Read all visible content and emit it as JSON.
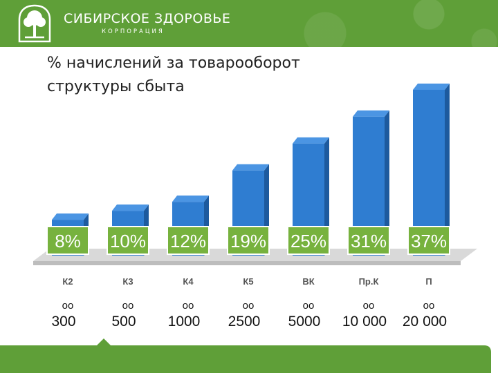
{
  "header": {
    "brand_name": "СИБИРСКОЕ ЗДОРОВЬЕ",
    "brand_subtitle": "КОРПОРАЦИЯ",
    "logo_icon": "tree-logo-icon",
    "color": "#5f9f38"
  },
  "title": {
    "line1": "% начислений за товарооборот",
    "line2": "структуры сбыта"
  },
  "chart_data": {
    "type": "bar",
    "categories": [
      "К2",
      "К3",
      "К4",
      "К5",
      "ВК",
      "Пр.К",
      "П"
    ],
    "values": [
      8,
      10,
      12,
      19,
      25,
      31,
      37
    ],
    "data_labels": [
      "8%",
      "10%",
      "12%",
      "19%",
      "25%",
      "31%",
      "37%"
    ],
    "threshold_suffix": "оо",
    "thresholds": [
      "300",
      "500",
      "1000",
      "2500",
      "5000",
      "10 000",
      "20 000"
    ],
    "ylim": [
      0,
      37
    ],
    "grid": false,
    "colors": {
      "bar": "#2f7dd1",
      "label_box": "#77b23e",
      "floor": "#d9d9d9"
    }
  }
}
